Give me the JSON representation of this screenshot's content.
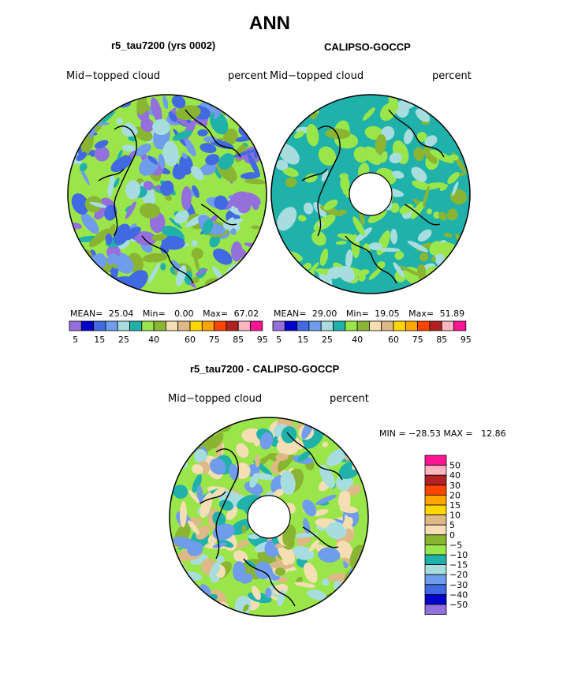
{
  "figure": {
    "title": "ANN",
    "panel_left": {
      "title": "r5_tau7200 (yrs 0002)",
      "left_label": "Mid−topped cloud",
      "right_label": "percent",
      "stats": {
        "mean_label": "MEAN=",
        "mean": "25.04",
        "min_label": "Min=",
        "min": "0.00",
        "max_label": "Max=",
        "max": "67.02"
      }
    },
    "panel_right": {
      "title": "CALIPSO-GOCCP",
      "left_label": "Mid−topped cloud",
      "right_label": "percent",
      "stats": {
        "mean_label": "MEAN=",
        "mean": "29.00",
        "min_label": "Min=",
        "min": "19.05",
        "max_label": "Max=",
        "max": "51.89"
      }
    },
    "panel_diff": {
      "title": "r5_tau7200 - CALIPSO-GOCCP",
      "left_label": "Mid−topped cloud",
      "right_label": "percent",
      "minmax": "MIN = −28.53 MAX =   12.86"
    }
  },
  "chart_data": [
    {
      "type": "heatmap",
      "title": "r5_tau7200 (yrs 0002)",
      "projection": "north polar stereographic",
      "variable": "Mid-topped cloud",
      "units": "percent",
      "stats": {
        "mean": 25.04,
        "min": 0.0,
        "max": 67.02
      },
      "colorbar": {
        "levels": [
          5,
          10,
          15,
          20,
          25,
          30,
          35,
          40,
          45,
          50,
          55,
          60,
          65,
          70,
          75,
          80,
          85,
          90,
          95
        ],
        "tick_labels": [
          "5",
          "15",
          "25",
          "40",
          "60",
          "75",
          "85",
          "95"
        ],
        "colors": [
          "#9370db",
          "#0000cd",
          "#4169e1",
          "#6f9ceb",
          "#a8dde0",
          "#20b2aa",
          "#9ae64a",
          "#8ab533",
          "#f5deb3",
          "#deb887",
          "#ffd700",
          "#ffa500",
          "#ff4500",
          "#b22222",
          "#ffb6c1",
          "#ff1493"
        ]
      }
    },
    {
      "type": "heatmap",
      "title": "CALIPSO-GOCCP",
      "projection": "north polar stereographic",
      "variable": "Mid-topped cloud",
      "units": "percent",
      "stats": {
        "mean": 29.0,
        "min": 19.05,
        "max": 51.89
      },
      "colorbar": {
        "levels": [
          5,
          10,
          15,
          20,
          25,
          30,
          35,
          40,
          45,
          50,
          55,
          60,
          65,
          70,
          75,
          80,
          85,
          90,
          95
        ],
        "tick_labels": [
          "5",
          "15",
          "25",
          "40",
          "60",
          "75",
          "85",
          "95"
        ],
        "colors": [
          "#9370db",
          "#0000cd",
          "#4169e1",
          "#6f9ceb",
          "#a8dde0",
          "#20b2aa",
          "#9ae64a",
          "#8ab533",
          "#f5deb3",
          "#deb887",
          "#ffd700",
          "#ffa500",
          "#ff4500",
          "#b22222",
          "#ffb6c1",
          "#ff1493"
        ]
      }
    },
    {
      "type": "heatmap",
      "title": "r5_tau7200 - CALIPSO-GOCCP",
      "projection": "north polar stereographic",
      "variable": "Mid-topped cloud",
      "units": "percent",
      "stats": {
        "min": -28.53,
        "max": 12.86
      },
      "colorbar": {
        "orientation": "vertical",
        "tick_labels": [
          "50",
          "40",
          "30",
          "20",
          "15",
          "10",
          "5",
          "0",
          "−5",
          "−10",
          "−15",
          "−20",
          "−30",
          "−40",
          "−50"
        ],
        "colors_top_to_bottom": [
          "#ff1493",
          "#ffb6c1",
          "#b22222",
          "#ff4500",
          "#ffa500",
          "#ffd700",
          "#deb887",
          "#f5deb3",
          "#8ab533",
          "#9ae64a",
          "#20b2aa",
          "#a8dde0",
          "#6f9ceb",
          "#4169e1",
          "#0000cd",
          "#9370db"
        ]
      }
    }
  ]
}
